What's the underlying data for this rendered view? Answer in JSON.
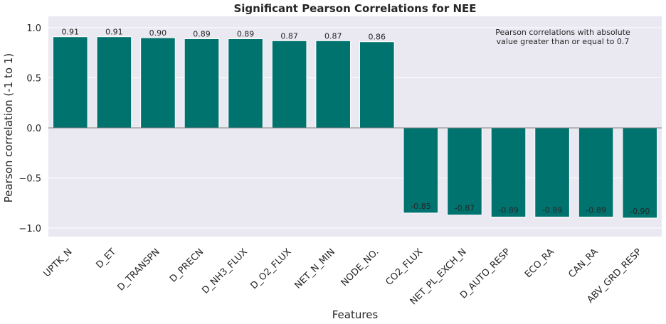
{
  "chart_data": {
    "type": "bar",
    "title": "Significant Pearson Correlations for NEE",
    "xlabel": "Features",
    "ylabel": "Pearson correlation (-1 to 1)",
    "ylim": [
      -1.1,
      1.1
    ],
    "yticks": [
      1.0,
      0.5,
      0.0,
      -0.5,
      -1.0
    ],
    "ytick_labels": [
      "1.0",
      "0.5",
      "0.0",
      "−0.5",
      "−1.0"
    ],
    "grid": true,
    "bar_color": "#00736f",
    "background_color": "#eae9f2",
    "categories": [
      "UPTK_N",
      "D_ET",
      "D_TRANSPN",
      "D_PRECN",
      "D_NH3_FLUX",
      "D_O2_FLUX",
      "NET_N_MIN",
      "NODE_NO.",
      "CO2_FLUX",
      "NET_PL_EXCH_N",
      "D_AUTO_RESP",
      "ECO_RA",
      "CAN_RA",
      "ABV_GRD_RESP"
    ],
    "values": [
      0.91,
      0.91,
      0.9,
      0.89,
      0.89,
      0.87,
      0.87,
      0.86,
      -0.85,
      -0.87,
      -0.89,
      -0.89,
      -0.89,
      -0.9
    ],
    "value_labels": [
      "0.91",
      "0.91",
      "0.90",
      "0.89",
      "0.89",
      "0.87",
      "0.87",
      "0.86",
      "-0.85",
      "-0.87",
      "-0.89",
      "-0.89",
      "-0.89",
      "-0.90"
    ],
    "annotation": [
      "Pearson correlations with absolute",
      "value greater than or equal to 0.7"
    ]
  }
}
